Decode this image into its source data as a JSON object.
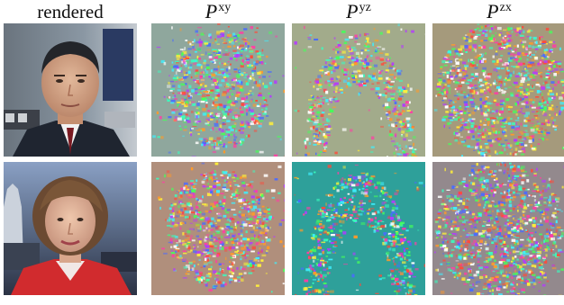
{
  "figure": {
    "columns": [
      {
        "id": "rendered",
        "label": "rendered",
        "math_base": "",
        "math_sup": ""
      },
      {
        "id": "pxy",
        "label": "",
        "math_base": "P",
        "math_sup": "xy"
      },
      {
        "id": "pyz",
        "label": "",
        "math_base": "P",
        "math_sup": "yz"
      },
      {
        "id": "pzx",
        "label": "",
        "math_base": "P",
        "math_sup": "zx"
      }
    ],
    "rows": [
      {
        "id": "row-1",
        "panels": [
          {
            "kind": "photo-man",
            "bg": "#7b8894"
          },
          {
            "kind": "feature-face-xy",
            "bg": "#8fa79d"
          },
          {
            "kind": "feature-arch-yz",
            "bg": "#a2ab8b"
          },
          {
            "kind": "feature-blob-zx",
            "bg": "#a59a7c"
          }
        ]
      },
      {
        "id": "row-2",
        "panels": [
          {
            "kind": "photo-woman",
            "bg": "#5b6678"
          },
          {
            "kind": "feature-face-xy",
            "bg": "#b08f7c"
          },
          {
            "kind": "feature-arch-yz",
            "bg": "#2ea09a"
          },
          {
            "kind": "feature-blob-zx",
            "bg": "#93898d"
          }
        ]
      }
    ]
  }
}
